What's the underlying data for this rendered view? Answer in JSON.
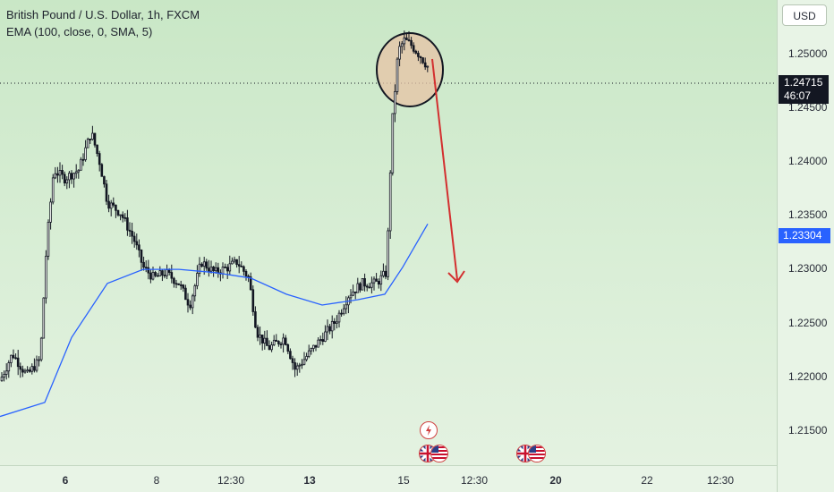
{
  "legend": {
    "symbol": "British Pound / U.S. Dollar, 1h, FXCM",
    "indicator": "EMA (100, close, 0, SMA, 5)"
  },
  "currency_button": "USD",
  "price_axis": [
    "1.25000",
    "1.24500",
    "1.24000",
    "1.23500",
    "1.23000",
    "1.22500",
    "1.22000",
    "1.21500"
  ],
  "time_axis": [
    {
      "label": "6",
      "bold": true
    },
    {
      "label": "8",
      "bold": false
    },
    {
      "label": "12:30",
      "bold": false
    },
    {
      "label": "13",
      "bold": true
    },
    {
      "label": "15",
      "bold": false
    },
    {
      "label": "12:30",
      "bold": false
    },
    {
      "label": "20",
      "bold": true
    },
    {
      "label": "22",
      "bold": false
    },
    {
      "label": "12:30",
      "bold": false
    }
  ],
  "last_price": {
    "value": "1.24715",
    "countdown": "46:07"
  },
  "ema_value": "1.23304",
  "colors": {
    "ema": "#2962ff",
    "candles": "#131722",
    "arrow": "#d32f2f",
    "highlight_fill": "#e7c3a5",
    "last_price_bg": "#131722"
  },
  "annotations": [
    "highlight-circle",
    "downward-arrow"
  ],
  "event_icons": [
    "lightning-bolt-icon",
    "uk-flag-icon",
    "us-flag-icon",
    "uk-flag-icon",
    "us-flag-icon"
  ],
  "chart_data": {
    "type": "candlestick",
    "title": "British Pound / U.S. Dollar, 1h, FXCM",
    "ylim": [
      1.2107,
      1.2537
    ],
    "grid": false,
    "close_path": [
      [
        0,
        1.2185
      ],
      [
        14,
        1.221
      ],
      [
        30,
        1.219
      ],
      [
        45,
        1.2205
      ],
      [
        52,
        1.231
      ],
      [
        60,
        1.238
      ],
      [
        72,
        1.2372
      ],
      [
        88,
        1.238
      ],
      [
        102,
        1.2415
      ],
      [
        112,
        1.2385
      ],
      [
        120,
        1.235
      ],
      [
        135,
        1.234
      ],
      [
        150,
        1.2315
      ],
      [
        160,
        1.229
      ],
      [
        172,
        1.228
      ],
      [
        185,
        1.2285
      ],
      [
        200,
        1.2275
      ],
      [
        212,
        1.2255
      ],
      [
        225,
        1.2295
      ],
      [
        240,
        1.2285
      ],
      [
        255,
        1.229
      ],
      [
        265,
        1.2295
      ],
      [
        278,
        1.228
      ],
      [
        287,
        1.223
      ],
      [
        300,
        1.2215
      ],
      [
        318,
        1.2225
      ],
      [
        330,
        1.2195
      ],
      [
        345,
        1.221
      ],
      [
        360,
        1.2225
      ],
      [
        375,
        1.224
      ],
      [
        390,
        1.2265
      ],
      [
        405,
        1.2275
      ],
      [
        420,
        1.2275
      ],
      [
        432,
        1.2285
      ],
      [
        438,
        1.242
      ],
      [
        445,
        1.249
      ],
      [
        452,
        1.25
      ],
      [
        460,
        1.2495
      ],
      [
        470,
        1.2485
      ],
      [
        480,
        1.2473
      ]
    ],
    "ema": [
      [
        0,
        1.2152
      ],
      [
        50,
        1.2165
      ],
      [
        80,
        1.2225
      ],
      [
        120,
        1.2275
      ],
      [
        160,
        1.2288
      ],
      [
        200,
        1.2288
      ],
      [
        240,
        1.2285
      ],
      [
        280,
        1.228
      ],
      [
        320,
        1.2265
      ],
      [
        360,
        1.2255
      ],
      [
        400,
        1.226
      ],
      [
        430,
        1.2265
      ],
      [
        450,
        1.229
      ],
      [
        478,
        1.233
      ]
    ]
  }
}
